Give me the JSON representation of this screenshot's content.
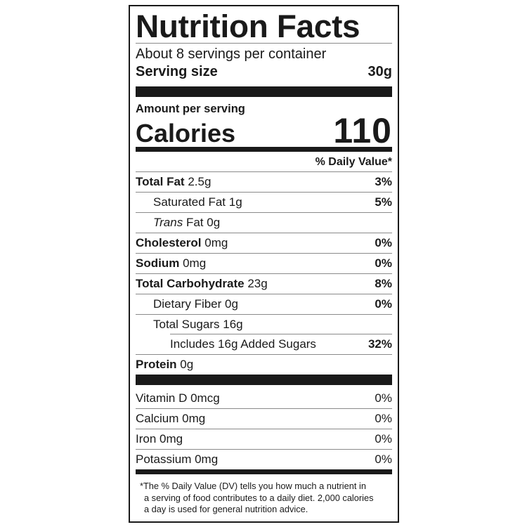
{
  "title": "Nutrition Facts",
  "servings_per_container": "About 8 servings per container",
  "serving_size": {
    "label": "Serving size",
    "value": "30g"
  },
  "amount_per_serving": "Amount per serving",
  "calories": {
    "label": "Calories",
    "value": "110"
  },
  "daily_value_header": "% Daily Value*",
  "nutrients": [
    {
      "name": "Total Fat",
      "amount": "2.5g",
      "dv": "3%"
    },
    {
      "name": "Saturated Fat",
      "amount": "1g",
      "dv": "5%"
    },
    {
      "name_italic": "Trans",
      "name": "Fat",
      "amount": "0g",
      "dv": ""
    },
    {
      "name": "Cholesterol",
      "amount": "0mg",
      "dv": "0%"
    },
    {
      "name": "Sodium",
      "amount": "0mg",
      "dv": "0%"
    },
    {
      "name": "Total Carbohydrate",
      "amount": "23g",
      "dv": "8%"
    },
    {
      "name": "Dietary Fiber",
      "amount": "0g",
      "dv": "0%"
    },
    {
      "name": "Total Sugars",
      "amount": "16g",
      "dv": ""
    },
    {
      "name": "Includes 16g Added Sugars",
      "amount": "",
      "dv": "32%"
    },
    {
      "name": "Protein",
      "amount": "0g",
      "dv": ""
    }
  ],
  "vitamins": [
    {
      "name": "Vitamin D 0mcg",
      "dv": "0%"
    },
    {
      "name": "Calcium 0mg",
      "dv": "0%"
    },
    {
      "name": "Iron 0mg",
      "dv": "0%"
    },
    {
      "name": "Potassium 0mg",
      "dv": "0%"
    }
  ],
  "footnote": [
    "*The % Daily Value (DV) tells you how much a nutrient in",
    "a serving of food contributes to a daily diet. 2,000 calories",
    "a day is used for general nutrition advice."
  ]
}
